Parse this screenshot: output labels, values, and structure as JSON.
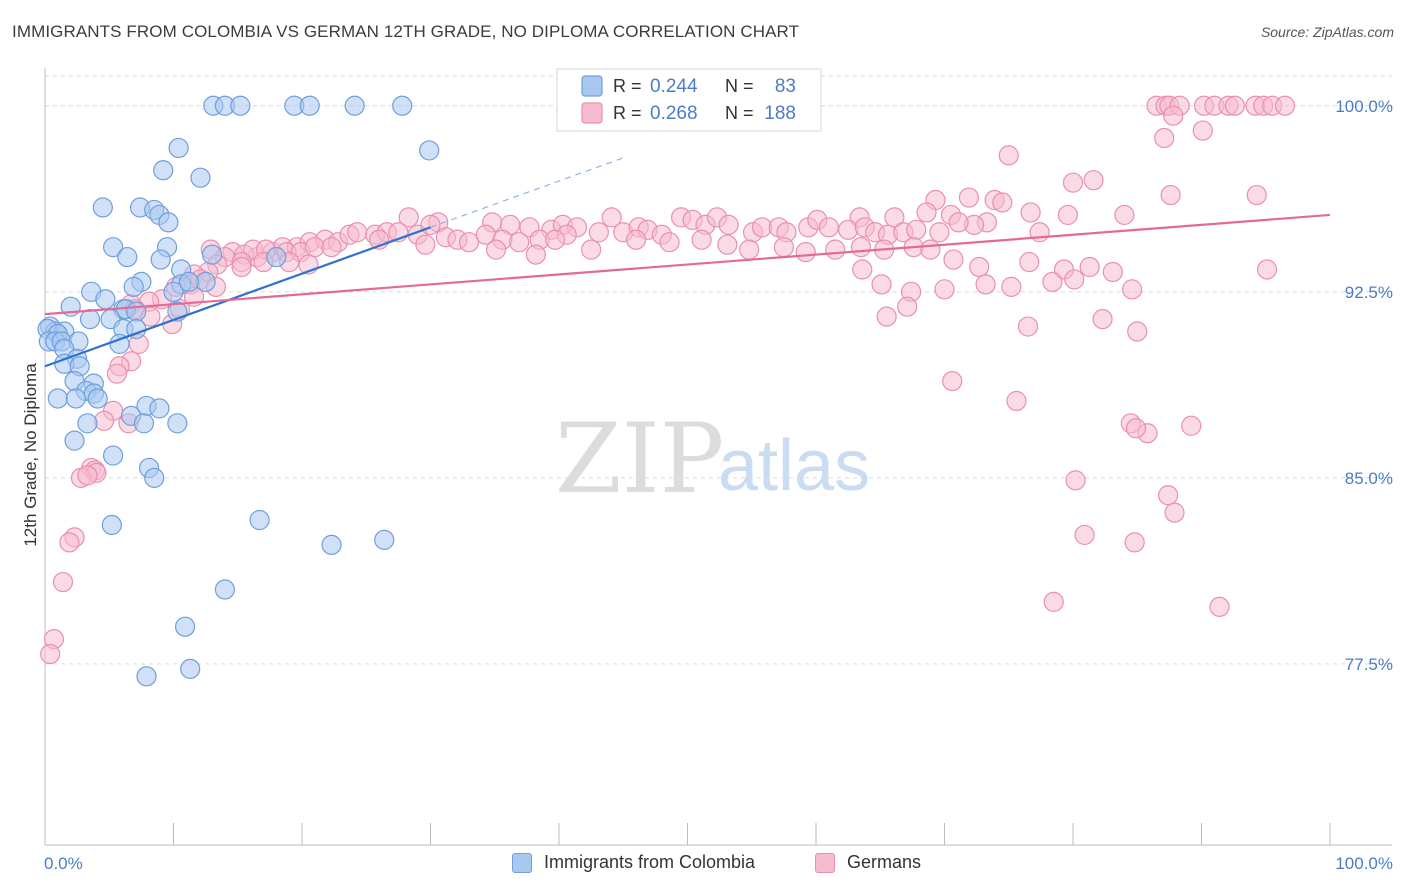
{
  "title": "IMMIGRANTS FROM COLOMBIA VS GERMAN 12TH GRADE, NO DIPLOMA CORRELATION CHART",
  "source": "Source: ZipAtlas.com",
  "watermark": {
    "zip": "ZIP",
    "atlas": "atlas"
  },
  "colors": {
    "blue_fill": "#a9c8f0",
    "blue_stroke": "#6f9fdc",
    "blue_line": "#2f72d0",
    "pink_fill": "#f5bcd0",
    "pink_stroke": "#ea8fb1",
    "pink_line": "#e46a95",
    "axis_label": "#4a7cc9",
    "grid": "#d9d9d9"
  },
  "legend": {
    "r_label": "R =",
    "n_label": "N =",
    "rows": [
      {
        "series": "blue",
        "r": "0.244",
        "n": "83"
      },
      {
        "series": "pink",
        "r": "0.268",
        "n": "188"
      }
    ]
  },
  "chart_data": {
    "type": "scatter",
    "title": "IMMIGRANTS FROM COLOMBIA VS GERMAN 12TH GRADE, NO DIPLOMA CORRELATION CHART",
    "xlabel": "",
    "ylabel": "12th Grade, No Diploma",
    "xlim": [
      0,
      100
    ],
    "ylim": [
      70.2,
      101.2
    ],
    "x_tick_labels": [
      "0.0%",
      "100.0%"
    ],
    "y_ticks": [
      77.5,
      85.0,
      92.5,
      100.0
    ],
    "y_tick_labels": [
      "77.5%",
      "85.0%",
      "92.5%",
      "100.0%"
    ],
    "grid": "horizontal dashed",
    "legend_position": "top-center",
    "series": [
      {
        "name": "Immigrants from Colombia",
        "color": "blue",
        "r": 0.244,
        "n": 83,
        "trend": {
          "x": [
            0,
            30
          ],
          "y": [
            89.5,
            95.1
          ],
          "dashed_to": [
            45,
            97.9
          ]
        },
        "points": [
          [
            13.1,
            100
          ],
          [
            14.0,
            100
          ],
          [
            15.2,
            100
          ],
          [
            19.4,
            100
          ],
          [
            20.6,
            100
          ],
          [
            24.1,
            100
          ],
          [
            27.8,
            100
          ],
          [
            10.4,
            98.3
          ],
          [
            29.9,
            98.2
          ],
          [
            9.2,
            97.4
          ],
          [
            12.1,
            97.1
          ],
          [
            4.5,
            95.9
          ],
          [
            7.4,
            95.9
          ],
          [
            8.5,
            95.8
          ],
          [
            8.9,
            95.6
          ],
          [
            9.6,
            95.3
          ],
          [
            5.3,
            94.3
          ],
          [
            9.5,
            94.3
          ],
          [
            6.4,
            93.9
          ],
          [
            13.0,
            94.0
          ],
          [
            18.0,
            93.9
          ],
          [
            9.0,
            93.8
          ],
          [
            10.6,
            93.4
          ],
          [
            12.5,
            92.9
          ],
          [
            7.5,
            92.9
          ],
          [
            10.6,
            92.8
          ],
          [
            11.2,
            92.9
          ],
          [
            6.9,
            92.7
          ],
          [
            3.6,
            92.5
          ],
          [
            4.7,
            92.2
          ],
          [
            10.0,
            92.5
          ],
          [
            2.0,
            91.9
          ],
          [
            6.1,
            91.8
          ],
          [
            6.3,
            91.8
          ],
          [
            7.1,
            91.7
          ],
          [
            10.3,
            91.7
          ],
          [
            3.5,
            91.4
          ],
          [
            5.1,
            91.4
          ],
          [
            0.4,
            91.1
          ],
          [
            0.8,
            90.9
          ],
          [
            0.2,
            91.0
          ],
          [
            1.5,
            90.9
          ],
          [
            1.0,
            90.8
          ],
          [
            6.1,
            91.0
          ],
          [
            7.1,
            91.0
          ],
          [
            5.8,
            90.4
          ],
          [
            0.3,
            90.5
          ],
          [
            0.8,
            90.5
          ],
          [
            1.3,
            90.5
          ],
          [
            2.6,
            90.5
          ],
          [
            1.5,
            90.2
          ],
          [
            2.5,
            89.8
          ],
          [
            1.5,
            89.6
          ],
          [
            2.7,
            89.5
          ],
          [
            3.8,
            88.8
          ],
          [
            2.3,
            88.9
          ],
          [
            3.2,
            88.5
          ],
          [
            3.8,
            88.4
          ],
          [
            4.1,
            88.2
          ],
          [
            1.0,
            88.2
          ],
          [
            2.4,
            88.2
          ],
          [
            7.9,
            87.9
          ],
          [
            8.9,
            87.8
          ],
          [
            6.7,
            87.5
          ],
          [
            3.3,
            87.2
          ],
          [
            7.7,
            87.2
          ],
          [
            10.3,
            87.2
          ],
          [
            2.3,
            86.5
          ],
          [
            5.3,
            85.9
          ],
          [
            8.1,
            85.4
          ],
          [
            8.5,
            85.0
          ],
          [
            16.7,
            83.3
          ],
          [
            5.2,
            83.1
          ],
          [
            26.4,
            82.5
          ],
          [
            22.3,
            82.3
          ],
          [
            14.0,
            80.5
          ],
          [
            10.9,
            79.0
          ],
          [
            11.3,
            77.3
          ],
          [
            7.9,
            77.0
          ]
        ]
      },
      {
        "name": "Germans",
        "color": "pink",
        "r": 0.268,
        "n": 188,
        "trend": {
          "x": [
            0,
            100
          ],
          "y": [
            91.6,
            95.6
          ]
        },
        "points": [
          [
            86.5,
            100
          ],
          [
            87.2,
            100
          ],
          [
            87.5,
            100
          ],
          [
            88.3,
            100
          ],
          [
            90.2,
            100
          ],
          [
            91.0,
            100
          ],
          [
            92.1,
            100
          ],
          [
            92.6,
            100
          ],
          [
            94.2,
            100
          ],
          [
            94.8,
            100
          ],
          [
            95.5,
            100
          ],
          [
            96.5,
            100
          ],
          [
            87.8,
            99.6
          ],
          [
            90.1,
            99.0
          ],
          [
            87.1,
            98.7
          ],
          [
            75.0,
            98.0
          ],
          [
            94.3,
            96.4
          ],
          [
            80.0,
            96.9
          ],
          [
            81.6,
            97.0
          ],
          [
            87.6,
            96.4
          ],
          [
            71.9,
            96.3
          ],
          [
            69.3,
            96.2
          ],
          [
            73.9,
            96.2
          ],
          [
            74.5,
            96.1
          ],
          [
            76.7,
            95.7
          ],
          [
            79.6,
            95.6
          ],
          [
            84.0,
            95.6
          ],
          [
            70.5,
            95.6
          ],
          [
            73.3,
            95.3
          ],
          [
            72.3,
            95.2
          ],
          [
            68.6,
            95.7
          ],
          [
            66.1,
            95.5
          ],
          [
            63.4,
            95.5
          ],
          [
            28.3,
            95.5
          ],
          [
            30.6,
            95.3
          ],
          [
            34.8,
            95.3
          ],
          [
            36.2,
            95.2
          ],
          [
            37.7,
            95.1
          ],
          [
            39.4,
            95.0
          ],
          [
            40.3,
            95.2
          ],
          [
            44.1,
            95.5
          ],
          [
            41.4,
            95.1
          ],
          [
            40.6,
            94.8
          ],
          [
            43.1,
            94.9
          ],
          [
            45.0,
            94.9
          ],
          [
            46.2,
            95.1
          ],
          [
            46.9,
            95.0
          ],
          [
            48.0,
            94.8
          ],
          [
            49.5,
            95.5
          ],
          [
            50.4,
            95.4
          ],
          [
            51.4,
            95.2
          ],
          [
            52.3,
            95.5
          ],
          [
            53.2,
            95.2
          ],
          [
            55.1,
            94.9
          ],
          [
            55.8,
            95.1
          ],
          [
            57.1,
            95.1
          ],
          [
            57.7,
            94.9
          ],
          [
            59.4,
            95.1
          ],
          [
            60.1,
            95.4
          ],
          [
            61.0,
            95.1
          ],
          [
            62.5,
            95.0
          ],
          [
            63.8,
            95.1
          ],
          [
            64.6,
            94.9
          ],
          [
            65.6,
            94.8
          ],
          [
            66.8,
            94.9
          ],
          [
            67.8,
            95.0
          ],
          [
            69.6,
            94.9
          ],
          [
            71.1,
            95.3
          ],
          [
            77.4,
            94.9
          ],
          [
            16.5,
            93.9
          ],
          [
            17.7,
            94.1
          ],
          [
            18.5,
            94.3
          ],
          [
            19.6,
            94.3
          ],
          [
            20.6,
            94.5
          ],
          [
            21.8,
            94.6
          ],
          [
            22.8,
            94.5
          ],
          [
            23.7,
            94.8
          ],
          [
            24.3,
            94.9
          ],
          [
            25.7,
            94.8
          ],
          [
            26.6,
            94.9
          ],
          [
            27.5,
            94.9
          ],
          [
            29.0,
            94.8
          ],
          [
            30.0,
            95.2
          ],
          [
            14.6,
            94.1
          ],
          [
            15.5,
            94.0
          ],
          [
            16.2,
            94.2
          ],
          [
            17.2,
            94.2
          ],
          [
            18.8,
            94.1
          ],
          [
            19.9,
            94.1
          ],
          [
            21.0,
            94.3
          ],
          [
            22.3,
            94.3
          ],
          [
            26.0,
            94.6
          ],
          [
            29.6,
            94.4
          ],
          [
            31.2,
            94.7
          ],
          [
            32.1,
            94.6
          ],
          [
            33.0,
            94.5
          ],
          [
            34.3,
            94.8
          ],
          [
            35.6,
            94.6
          ],
          [
            36.9,
            94.5
          ],
          [
            38.5,
            94.6
          ],
          [
            39.7,
            94.6
          ],
          [
            12.9,
            94.2
          ],
          [
            14.0,
            93.9
          ],
          [
            13.4,
            93.6
          ],
          [
            12.7,
            93.3
          ],
          [
            15.3,
            93.7
          ],
          [
            11.6,
            93.2
          ],
          [
            19.0,
            93.7
          ],
          [
            20.5,
            93.6
          ],
          [
            17.0,
            93.7
          ],
          [
            15.3,
            93.5
          ],
          [
            35.1,
            94.2
          ],
          [
            38.2,
            94.0
          ],
          [
            42.5,
            94.2
          ],
          [
            46.0,
            94.6
          ],
          [
            48.6,
            94.5
          ],
          [
            51.1,
            94.6
          ],
          [
            53.1,
            94.4
          ],
          [
            54.8,
            94.2
          ],
          [
            57.5,
            94.3
          ],
          [
            59.2,
            94.1
          ],
          [
            61.5,
            94.2
          ],
          [
            63.5,
            94.3
          ],
          [
            65.3,
            94.2
          ],
          [
            67.6,
            94.3
          ],
          [
            68.9,
            94.2
          ],
          [
            70.7,
            93.8
          ],
          [
            72.7,
            93.5
          ],
          [
            76.6,
            93.7
          ],
          [
            79.3,
            93.4
          ],
          [
            81.3,
            93.5
          ],
          [
            83.1,
            93.3
          ],
          [
            95.1,
            93.4
          ],
          [
            11.3,
            92.8
          ],
          [
            12.1,
            93.0
          ],
          [
            13.3,
            92.7
          ],
          [
            10.2,
            92.7
          ],
          [
            63.6,
            93.4
          ],
          [
            65.1,
            92.8
          ],
          [
            67.4,
            92.5
          ],
          [
            70.0,
            92.6
          ],
          [
            73.2,
            92.8
          ],
          [
            75.2,
            92.7
          ],
          [
            78.4,
            92.9
          ],
          [
            80.1,
            93.0
          ],
          [
            84.6,
            92.6
          ],
          [
            11.6,
            92.3
          ],
          [
            9.1,
            92.2
          ],
          [
            8.1,
            92.1
          ],
          [
            6.7,
            92.0
          ],
          [
            7.0,
            91.8
          ],
          [
            8.2,
            91.5
          ],
          [
            9.9,
            91.2
          ],
          [
            10.5,
            91.8
          ],
          [
            67.1,
            91.9
          ],
          [
            65.5,
            91.5
          ],
          [
            76.5,
            91.1
          ],
          [
            82.3,
            91.4
          ],
          [
            85.0,
            90.9
          ],
          [
            7.3,
            90.4
          ],
          [
            6.7,
            89.7
          ],
          [
            5.8,
            89.5
          ],
          [
            5.6,
            89.2
          ],
          [
            70.6,
            88.9
          ],
          [
            75.6,
            88.1
          ],
          [
            5.3,
            87.7
          ],
          [
            4.6,
            87.3
          ],
          [
            6.5,
            87.2
          ],
          [
            84.5,
            87.2
          ],
          [
            89.2,
            87.1
          ],
          [
            85.8,
            86.8
          ],
          [
            84.9,
            87.0
          ],
          [
            3.6,
            85.4
          ],
          [
            3.9,
            85.3
          ],
          [
            4.0,
            85.2
          ],
          [
            2.8,
            85.0
          ],
          [
            3.3,
            85.1
          ],
          [
            80.2,
            84.9
          ],
          [
            87.4,
            84.3
          ],
          [
            87.9,
            83.6
          ],
          [
            80.9,
            82.7
          ],
          [
            84.8,
            82.4
          ],
          [
            2.3,
            82.6
          ],
          [
            1.9,
            82.4
          ],
          [
            1.4,
            80.8
          ],
          [
            78.5,
            80.0
          ],
          [
            91.4,
            79.8
          ],
          [
            0.7,
            78.5
          ],
          [
            0.4,
            77.9
          ]
        ]
      }
    ]
  },
  "bottom_legend": [
    {
      "label": "Immigrants from Colombia",
      "color": "blue"
    },
    {
      "label": "Germans",
      "color": "pink"
    }
  ]
}
